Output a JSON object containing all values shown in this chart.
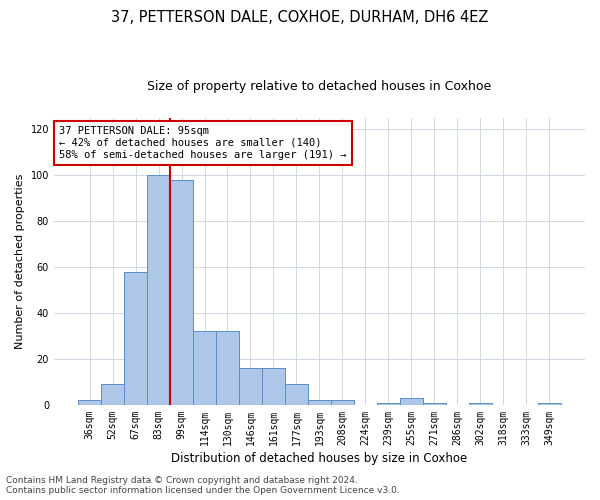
{
  "title": "37, PETTERSON DALE, COXHOE, DURHAM, DH6 4EZ",
  "subtitle": "Size of property relative to detached houses in Coxhoe",
  "xlabel": "Distribution of detached houses by size in Coxhoe",
  "ylabel": "Number of detached properties",
  "categories": [
    "36sqm",
    "52sqm",
    "67sqm",
    "83sqm",
    "99sqm",
    "114sqm",
    "130sqm",
    "146sqm",
    "161sqm",
    "177sqm",
    "193sqm",
    "208sqm",
    "224sqm",
    "239sqm",
    "255sqm",
    "271sqm",
    "286sqm",
    "302sqm",
    "318sqm",
    "333sqm",
    "349sqm"
  ],
  "values": [
    2,
    9,
    58,
    100,
    98,
    32,
    32,
    16,
    16,
    9,
    2,
    2,
    0,
    1,
    3,
    1,
    0,
    1,
    0,
    0,
    1
  ],
  "bar_color": "#aec6e8",
  "bar_edge_color": "#5b8dc8",
  "annotation_line1": "37 PETTERSON DALE: 95sqm",
  "annotation_line2": "← 42% of detached houses are smaller (140)",
  "annotation_line3": "58% of semi-detached houses are larger (191) →",
  "vline_color": "#cc0000",
  "vline_x": 3.5,
  "ylim": [
    0,
    125
  ],
  "yticks": [
    0,
    20,
    40,
    60,
    80,
    100,
    120
  ],
  "annotation_box_color": "#ffffff",
  "annotation_box_edge": "#cc0000",
  "footer1": "Contains HM Land Registry data © Crown copyright and database right 2024.",
  "footer2": "Contains public sector information licensed under the Open Government Licence v3.0.",
  "bg_color": "#ffffff",
  "grid_color": "#d0d8e8",
  "title_fontsize": 10.5,
  "subtitle_fontsize": 9,
  "tick_fontsize": 7,
  "ylabel_fontsize": 8,
  "xlabel_fontsize": 8.5,
  "annotation_fontsize": 7.5,
  "footer_fontsize": 6.5
}
